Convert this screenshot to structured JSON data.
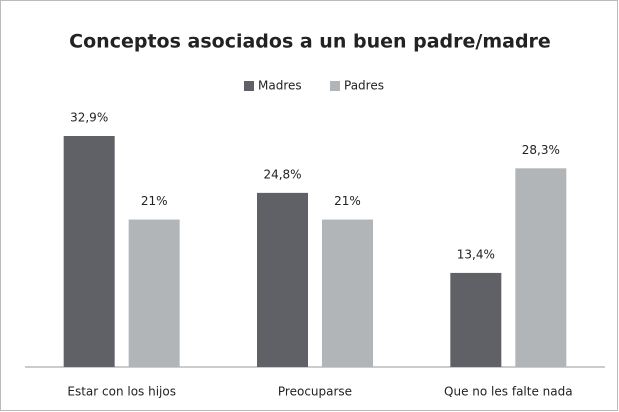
{
  "chart_data": {
    "type": "bar",
    "title": "Conceptos asociados a un buen padre/madre",
    "categories": [
      "Estar con los hijos",
      "Preocuparse",
      "Que no les falte nada"
    ],
    "series": [
      {
        "name": "Madres",
        "color": "#5f6166",
        "values": [
          32.9,
          24.8,
          13.4
        ],
        "value_labels": [
          "32,9%",
          "24,8%",
          "13,4%"
        ]
      },
      {
        "name": "Padres",
        "color": "#b2b5b8",
        "values": [
          21,
          21,
          28.3
        ],
        "value_labels": [
          "21%",
          "21%",
          "28,3%"
        ]
      }
    ],
    "legend": "top"
  }
}
